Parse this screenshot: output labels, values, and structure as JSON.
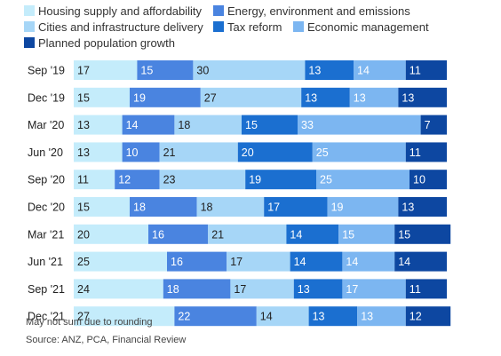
{
  "chart_data": {
    "type": "bar",
    "orientation": "horizontal",
    "stacked": true,
    "categories": [
      "Sep '19",
      "Dec '19",
      "Mar '20",
      "Jun '20",
      "Sep '20",
      "Dec '20",
      "Mar '21",
      "Jun '21",
      "Sep '21",
      "Dec '21"
    ],
    "series": [
      {
        "name": "Housing supply and affordability",
        "color": "#c4ecfb",
        "values": [
          17,
          15,
          13,
          13,
          11,
          15,
          20,
          25,
          24,
          27
        ]
      },
      {
        "name": "Energy, environment and emissions",
        "color": "#4a84e0",
        "values": [
          15,
          19,
          14,
          10,
          12,
          18,
          16,
          16,
          18,
          22
        ]
      },
      {
        "name": "Cities and infrastructure delivery",
        "color": "#a6d6f7",
        "values": [
          30,
          27,
          18,
          21,
          23,
          18,
          21,
          17,
          17,
          14
        ]
      },
      {
        "name": "Tax reform",
        "color": "#1b6fd0",
        "values": [
          13,
          13,
          15,
          20,
          19,
          17,
          14,
          14,
          13,
          13
        ]
      },
      {
        "name": "Economic management",
        "color": "#7cb6f1",
        "values": [
          14,
          13,
          33,
          25,
          25,
          19,
          15,
          14,
          17,
          13
        ]
      },
      {
        "name": "Planned population growth",
        "color": "#0d47a1",
        "values": [
          11,
          13,
          7,
          11,
          10,
          13,
          15,
          14,
          11,
          12
        ]
      }
    ],
    "legend_placement": "top",
    "grid": false
  },
  "notes": {
    "rounding": "May not sum due to rounding",
    "source": "Source: ANZ, PCA, Financial Review"
  }
}
